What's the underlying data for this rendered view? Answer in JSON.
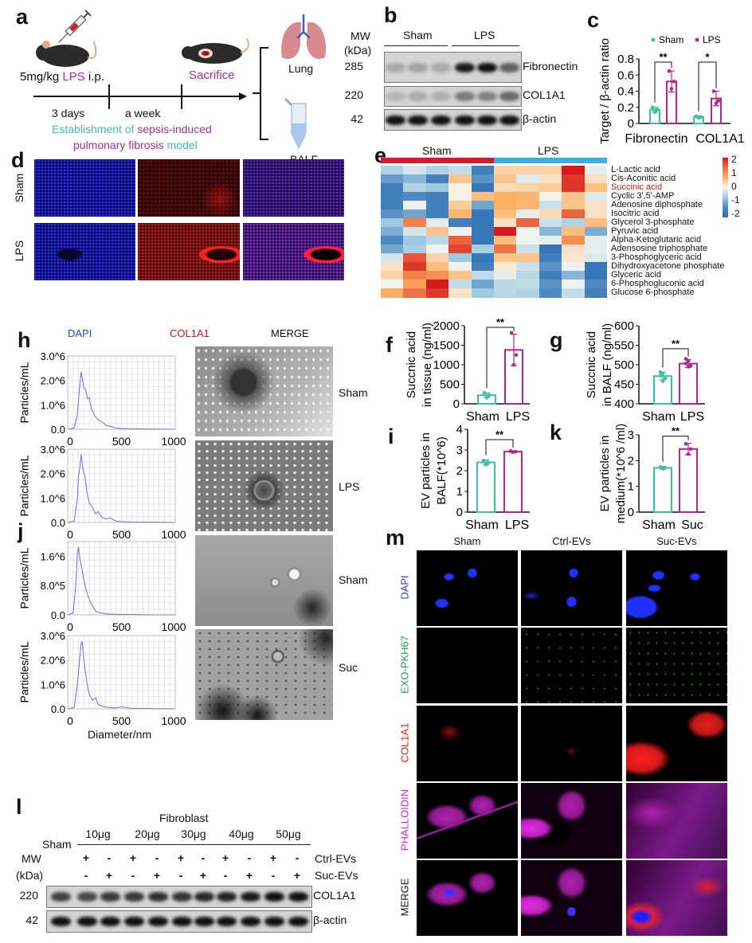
{
  "panel_a": {
    "label": "a",
    "dose": "5mg/kg ",
    "lps": "LPS",
    "ip": " i.p.",
    "sacrifice": "Sacrifice",
    "t1": "3 days",
    "t2": "a week",
    "model_1a": "Establishment of ",
    "model_1b": "sepsis-induced",
    "model_2a": "pulmonary fibrosis",
    "model_2b": " model",
    "lung": "Lung",
    "balf": "BALF"
  },
  "panel_b": {
    "label": "b",
    "mw": "MW",
    "kda": "(kDa)",
    "groups": [
      "Sham",
      "LPS"
    ],
    "rows": [
      {
        "label": "Fibronectin",
        "mw": "285",
        "intensity": [
          0.22,
          0.25,
          0.22,
          0.95,
          1.0,
          0.6
        ]
      },
      {
        "label": "COL1A1",
        "mw": "220",
        "intensity": [
          0.15,
          0.2,
          0.18,
          0.45,
          0.42,
          0.55
        ]
      },
      {
        "label": "β-actin",
        "mw": "42",
        "intensity": [
          1,
          1,
          1,
          1,
          1,
          1
        ]
      }
    ]
  },
  "panel_d": {
    "label": "d",
    "rows": [
      "Sham",
      "LPS"
    ],
    "columns": [
      "DAPI",
      "COL1A1",
      "MERGE"
    ]
  },
  "panel_e": {
    "label": "e",
    "groups": [
      "Sham",
      "LPS"
    ],
    "group_colors": [
      "#d7192c",
      "#3bb0e0"
    ],
    "scale_labels": [
      "2",
      "1",
      "0",
      "-1",
      "-2"
    ],
    "metabolites": [
      "L-Lactic acid",
      "Cis-Aconitic acid",
      "Succinic acid",
      "Cyclic 3',5'-AMP",
      "Adenosine diphosphate",
      "Isocitric acid",
      "Glycerol 3-phosphate",
      "Pyruvic acid",
      "Alpha-Ketoglutaric acid",
      "Adensosine triphosphate",
      "3-Phosphoglyceric acid",
      "Dihydroxyacetone phosphate",
      "Glyceric acid",
      "6-Phosphogluconic acid",
      "Glucose 6-phosphate"
    ],
    "highlight": "Succinic acid",
    "zscores": [
      [
        -0.8,
        -0.4,
        -0.8,
        -0.6,
        -1.8,
        0.5,
        0.5,
        0.5,
        2.0,
        -0.2
      ],
      [
        -1.5,
        -1.2,
        -1.8,
        0.7,
        -1.6,
        0.7,
        -0.3,
        0.3,
        1.8,
        0.3
      ],
      [
        -1.8,
        -0.8,
        -1.0,
        0.1,
        -1.9,
        0.4,
        0.5,
        0.6,
        1.8,
        0.8
      ],
      [
        -1.8,
        -1.7,
        -1.8,
        0.1,
        0.8,
        1.0,
        0.9,
        -0.1,
        0.7,
        -0.3
      ],
      [
        -1.8,
        -0.1,
        -1.8,
        0.6,
        -1.4,
        1.0,
        0.9,
        -0.5,
        0.7,
        0.3
      ],
      [
        -1.6,
        -1.4,
        -1.8,
        0.9,
        -1.9,
        0.8,
        -0.2,
        0.4,
        1.5,
        0.3
      ],
      [
        -1.0,
        1.3,
        -0.2,
        -1.8,
        -1.9,
        0.3,
        1.5,
        -0.5,
        -0.8,
        0.8
      ],
      [
        -1.3,
        -0.4,
        0.7,
        -0.1,
        -1.9,
        2.2,
        -0.1,
        -1.2,
        0.8,
        -1.3
      ],
      [
        -1.7,
        -1.0,
        -0.7,
        1.5,
        -1.9,
        0.8,
        -0.1,
        -0.2,
        1.2,
        -0.2
      ],
      [
        -1.4,
        -0.9,
        -0.1,
        1.7,
        -0.9,
        1.4,
        -0.5,
        -1.9,
        0.3,
        -0.2
      ],
      [
        -0.4,
        1.6,
        0.5,
        -1.0,
        -1.9,
        0.7,
        0.7,
        -1.8,
        0.2,
        -0.3
      ],
      [
        0.3,
        1.8,
        0.8,
        -0.1,
        -1.8,
        0.2,
        -0.5,
        -1.6,
        -0.1,
        -1.9
      ],
      [
        0.5,
        1.3,
        1.2,
        0.7,
        -0.6,
        -0.2,
        -0.7,
        -1.8,
        -1.2,
        -1.9
      ],
      [
        -0.1,
        1.1,
        2.3,
        -0.6,
        -1.4,
        -0.7,
        -0.6,
        -1.6,
        -0.1,
        -1.7
      ],
      [
        1.0,
        1.4,
        1.8,
        0.3,
        -1.0,
        -0.7,
        -0.8,
        -1.7,
        -0.6,
        -1.8
      ]
    ]
  },
  "panel_h": {
    "label": "h",
    "tem_labels": [
      "Sham",
      "LPS"
    ]
  },
  "panel_j": {
    "label": "j",
    "tem_labels": [
      "Sham",
      "Suc"
    ],
    "xlabel": "Diameter/nm"
  },
  "panel_m": {
    "label": "m",
    "columns": [
      "Sham",
      "Ctrl-EVs",
      "Suc-EVs"
    ],
    "rows": [
      "DAPI",
      "EXO-PKH67",
      "COL1A1",
      "PHALLOIDIN",
      "MERGE"
    ],
    "row_colors": [
      "#2a3fd0",
      "#1aa050",
      "#e02020",
      "#e020d0",
      "#111111"
    ]
  },
  "panel_l": {
    "label": "l",
    "title": "Fibroblast",
    "sham": "Sham",
    "mw": "MW",
    "kda": "(kDa)",
    "doses": [
      "10μg",
      "20μg",
      "30μg",
      "40μg",
      "50μg"
    ],
    "ctrl_label": "Ctrl-EVs",
    "suc_label": "Suc-EVs",
    "ctrl_signs": [
      "+",
      "-",
      "+",
      "-",
      "+",
      "-",
      "+",
      "-",
      "+",
      "-"
    ],
    "suc_signs": [
      "-",
      "+",
      "-",
      "+",
      "-",
      "+",
      "-",
      "+",
      "-",
      "+"
    ],
    "rows": [
      {
        "label": "COL1A1",
        "mw": "220",
        "intensity": [
          0.75,
          0.72,
          0.8,
          0.8,
          0.85,
          0.82,
          0.88,
          0.9,
          0.95,
          1.0,
          1.0
        ]
      },
      {
        "label": "β-actin",
        "mw": "42",
        "intensity": [
          1,
          1,
          1,
          1,
          1,
          1,
          1,
          1,
          1,
          1,
          1
        ]
      }
    ]
  },
  "colors": {
    "sham": "#3fbf9c",
    "lps": "#b0278e"
  },
  "chart_data": [
    {
      "panel": "c",
      "label": "c",
      "type": "bar",
      "legend": true,
      "legend_placement": "top",
      "categories": [
        "Fibronectin",
        "COL1A1"
      ],
      "ylabel": [
        "Target / β-actin ratio"
      ],
      "ylim": [
        0,
        0.8
      ],
      "yticks": [
        0,
        0.2,
        0.4,
        0.6,
        0.8
      ],
      "series": [
        {
          "name": "Sham",
          "color": "#3fbf9c",
          "values": [
            0.17,
            0.08
          ],
          "sd": [
            0.03,
            0.01
          ],
          "points": [
            [
              0.14,
              0.17,
              0.2
            ],
            [
              0.07,
              0.08,
              0.09
            ]
          ]
        },
        {
          "name": "LPS",
          "color": "#b0278e",
          "values": [
            0.52,
            0.31
          ],
          "sd": [
            0.13,
            0.09
          ],
          "points": [
            [
              0.43,
              0.52,
              0.65
            ],
            [
              0.25,
              0.28,
              0.4
            ]
          ]
        }
      ],
      "significance": [
        {
          "category": 0,
          "label": "**",
          "y": 0.76
        },
        {
          "category": 1,
          "label": "*",
          "y": 0.76
        }
      ]
    },
    {
      "panel": "f",
      "label": "f",
      "type": "bar",
      "legend": false,
      "categories": [
        ""
      ],
      "ylabel": [
        "Succnic acid",
        "in tissue (ng/ml)"
      ],
      "ylim": [
        0,
        2000
      ],
      "yticks": [
        0,
        500,
        1000,
        1500,
        2000
      ],
      "series": [
        {
          "name": "Sham",
          "color": "#3fbf9c",
          "values": [
            220
          ],
          "sd": [
            60
          ],
          "points": [
            [
              160,
              220,
              280
            ]
          ]
        },
        {
          "name": "LPS",
          "color": "#b0278e",
          "values": [
            1380
          ],
          "sd": [
            400
          ],
          "points": [
            [
              1000,
              1250,
              1820
            ]
          ]
        }
      ],
      "significance": [
        {
          "category": 0,
          "label": "**",
          "y": 1960
        }
      ]
    },
    {
      "panel": "g",
      "label": "g",
      "type": "bar",
      "legend": false,
      "categories": [
        ""
      ],
      "ylabel": [
        "Succnic acid",
        "in BALF (ng/ml)"
      ],
      "ylim": [
        400,
        600
      ],
      "yticks": [
        400,
        450,
        500,
        550,
        600
      ],
      "series": [
        {
          "name": "Sham",
          "color": "#3fbf9c",
          "values": [
            471
          ],
          "sd": [
            10
          ],
          "points": [
            [
              458,
              465,
              472,
              478,
              481
            ]
          ]
        },
        {
          "name": "LPS",
          "color": "#b0278e",
          "values": [
            503
          ],
          "sd": [
            10
          ],
          "points": [
            [
              495,
              498,
              503,
              510,
              515
            ]
          ]
        }
      ],
      "significance": [
        {
          "category": 0,
          "label": "**",
          "y": 541
        }
      ]
    },
    {
      "panel": "i",
      "label": "i",
      "type": "bar",
      "legend": false,
      "categories": [
        ""
      ],
      "ylabel": [
        "EV particles in",
        "BALF(*10^6)"
      ],
      "ylim": [
        0,
        4
      ],
      "yticks": [
        0,
        1,
        2,
        3,
        4
      ],
      "series": [
        {
          "name": "Sham",
          "color": "#3fbf9c",
          "values": [
            2.4
          ],
          "sd": [
            0.12
          ],
          "points": [
            [
              2.3,
              2.4,
              2.5
            ]
          ]
        },
        {
          "name": "LPS",
          "color": "#b0278e",
          "values": [
            2.92
          ],
          "sd": [
            0.04
          ],
          "points": [
            [
              2.9,
              2.92,
              2.95
            ]
          ]
        }
      ],
      "significance": [
        {
          "category": 0,
          "label": "**",
          "y": 3.5
        }
      ]
    },
    {
      "panel": "k",
      "label": "k",
      "type": "bar",
      "legend": false,
      "categories": [
        ""
      ],
      "ylabel": [
        "EV particles in",
        "medium(*10^6 /ml)"
      ],
      "ylim": [
        0,
        3
      ],
      "yticks": [
        0,
        1,
        2,
        3
      ],
      "series": [
        {
          "name": "Sham",
          "color": "#3fbf9c",
          "values": [
            1.72
          ],
          "sd": [
            0.05
          ],
          "points": [
            [
              1.68,
              1.72,
              1.76
            ]
          ]
        },
        {
          "name": "Suc",
          "color": "#b0278e",
          "values": [
            2.45
          ],
          "sd": [
            0.22
          ],
          "points": [
            [
              2.25,
              2.45,
              2.65
            ]
          ]
        }
      ],
      "significance": [
        {
          "category": 0,
          "label": "**",
          "y": 2.95
        }
      ]
    },
    {
      "panel": "h-sham",
      "type": "line",
      "ylabel": "Particles/mL",
      "xlim": [
        0,
        1000
      ],
      "xticks": [
        0,
        500,
        1000
      ],
      "ylim": [
        0,
        3.0
      ],
      "ytick_values": [
        0,
        1,
        2,
        3
      ],
      "yticks": [
        "0.0",
        "1.0^6",
        "2.0^6",
        "3.0^6"
      ],
      "grid": true,
      "y_unit": "1e6 particles/mL",
      "x": [
        0,
        60,
        90,
        110,
        125,
        135,
        150,
        165,
        185,
        200,
        220,
        250,
        280,
        320,
        360,
        400,
        450,
        500,
        600,
        800,
        1000
      ],
      "y": [
        0,
        0.05,
        0.6,
        1.7,
        2.35,
        2.1,
        1.7,
        1.65,
        1.25,
        1.3,
        0.85,
        0.55,
        0.4,
        0.3,
        0.15,
        0.12,
        0.05,
        0.03,
        0.02,
        0.01,
        0
      ]
    },
    {
      "panel": "h-lps",
      "type": "line",
      "ylabel": "Particles/mL",
      "xlim": [
        0,
        1000
      ],
      "xticks": [
        0,
        500,
        1000
      ],
      "ylim": [
        0,
        3.0
      ],
      "ytick_values": [
        0,
        1,
        2,
        3
      ],
      "yticks": [
        "0.0",
        "1.0^6",
        "2.0^6",
        "3.0^6"
      ],
      "grid": true,
      "y_unit": "1e6 particles/mL",
      "x": [
        0,
        60,
        90,
        100,
        115,
        125,
        140,
        160,
        180,
        200,
        230,
        260,
        280,
        320,
        360,
        400,
        450,
        500,
        600,
        800,
        1000
      ],
      "y": [
        0,
        0.05,
        1.0,
        1.9,
        2.3,
        2.8,
        2.2,
        1.9,
        1.2,
        0.8,
        0.6,
        0.35,
        0.45,
        0.2,
        0.15,
        0.18,
        0.05,
        0.03,
        0.02,
        0.01,
        0
      ]
    },
    {
      "panel": "j-sham",
      "type": "line",
      "ylabel": "Particles/mL",
      "xlim": [
        0,
        1000
      ],
      "xticks": [
        0,
        500,
        1000
      ],
      "ylim": [
        0,
        2.0
      ],
      "ytick_values": [
        0,
        0.8,
        1.6
      ],
      "yticks": [
        "0.0",
        "8.0^5",
        "1.6^6"
      ],
      "grid": true,
      "y_unit": "1e6 particles/mL",
      "x": [
        0,
        50,
        75,
        90,
        100,
        115,
        130,
        150,
        170,
        190,
        210,
        230,
        260,
        300,
        350,
        400,
        500,
        600,
        800,
        1000
      ],
      "y": [
        0,
        0.05,
        0.8,
        1.7,
        1.85,
        1.5,
        1.3,
        0.95,
        0.7,
        0.5,
        0.35,
        0.25,
        0.1,
        0.06,
        0.03,
        0.02,
        0.01,
        0.01,
        0,
        0
      ]
    },
    {
      "panel": "j-suc",
      "type": "line",
      "ylabel": "Particles/mL",
      "xlim": [
        0,
        1000
      ],
      "xticks": [
        0,
        500,
        1000
      ],
      "ylim": [
        0,
        3.0
      ],
      "ytick_values": [
        0,
        1,
        2,
        3
      ],
      "yticks": [
        "0.0",
        "1.0^6",
        "2.0^6",
        "3.0^6"
      ],
      "grid": true,
      "y_unit": "1e6 particles/mL",
      "x": [
        0,
        60,
        90,
        110,
        125,
        135,
        150,
        165,
        185,
        200,
        230,
        260,
        280,
        320,
        360,
        400,
        450,
        500,
        600,
        800,
        1000
      ],
      "y": [
        0,
        0.05,
        1.0,
        2.0,
        2.7,
        2.75,
        2.0,
        1.5,
        0.9,
        0.6,
        0.35,
        0.45,
        0.2,
        0.1,
        0.07,
        0.05,
        0.04,
        0.08,
        0.02,
        0.01,
        0
      ]
    }
  ]
}
